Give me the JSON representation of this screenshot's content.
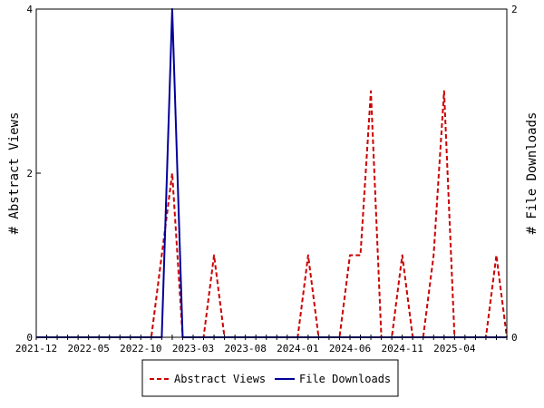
{
  "chart_data": {
    "type": "line",
    "title": "",
    "xlabel": "",
    "y_left_label": "# Abstract Views",
    "y_right_label": "# File Downloads",
    "y_left_lim": [
      0,
      4
    ],
    "y_right_lim": [
      0,
      2
    ],
    "y_left_ticks": [
      "0",
      "2",
      "4"
    ],
    "y_right_ticks": [
      "0",
      "2"
    ],
    "x_tick_labels": [
      "2021-12",
      "2022-05",
      "2022-10",
      "2023-03",
      "2023-08",
      "2024-01",
      "2024-06",
      "2024-11",
      "2025-04"
    ],
    "x_start_month": "2021-12",
    "x_end_month": "2025-09",
    "legend_placement": "bottom-center",
    "series": [
      {
        "name": "Abstract Views",
        "axis": "left",
        "color": "#cc0000",
        "dash": "dashed",
        "points": [
          [
            "2021-12",
            0
          ],
          [
            "2022-11",
            0
          ],
          [
            "2023-01",
            2
          ],
          [
            "2023-02",
            0
          ],
          [
            "2023-04",
            0
          ],
          [
            "2023-05",
            1
          ],
          [
            "2023-06",
            0
          ],
          [
            "2024-01",
            0
          ],
          [
            "2024-02",
            1
          ],
          [
            "2024-03",
            0
          ],
          [
            "2024-05",
            0
          ],
          [
            "2024-06",
            1
          ],
          [
            "2024-07",
            1
          ],
          [
            "2024-08",
            3
          ],
          [
            "2024-09",
            0
          ],
          [
            "2024-10",
            0
          ],
          [
            "2024-11",
            1
          ],
          [
            "2024-12",
            0
          ],
          [
            "2025-01",
            0
          ],
          [
            "2025-02",
            1
          ],
          [
            "2025-03",
            3
          ],
          [
            "2025-04",
            0
          ],
          [
            "2025-07",
            0
          ],
          [
            "2025-08",
            1
          ],
          [
            "2025-09",
            0
          ]
        ]
      },
      {
        "name": "File Downloads",
        "axis": "right",
        "color": "#000099",
        "dash": "solid",
        "points": [
          [
            "2021-12",
            0
          ],
          [
            "2022-12",
            0
          ],
          [
            "2023-01",
            2
          ],
          [
            "2023-02",
            0
          ],
          [
            "2025-09",
            0
          ]
        ]
      }
    ]
  }
}
